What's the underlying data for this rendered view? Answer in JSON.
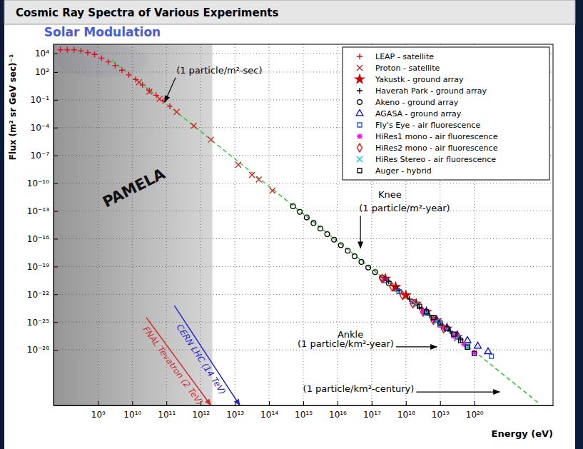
{
  "chart_data": {
    "type": "scatter",
    "title": "Cosmic Ray Spectra of Various Experiments",
    "x_label": "Energy (eV)",
    "y_label": "Flux (m² sr GeV sec)⁻¹",
    "log": true,
    "grid": true,
    "legend": "upper right",
    "xlim": [
      50000000.0,
      2e+22
    ],
    "ylim": [
      1e-34,
      100000.0
    ],
    "xticks": [
      {
        "value": 1000000000.0,
        "label": "10⁹"
      },
      {
        "value": 10000000000.0,
        "label": "10¹⁰"
      },
      {
        "value": 100000000000.0,
        "label": "10¹¹"
      },
      {
        "value": 1000000000000.0,
        "label": "10¹²"
      },
      {
        "value": 10000000000000.0,
        "label": "10¹³"
      },
      {
        "value": 100000000000000.0,
        "label": "10¹⁴"
      },
      {
        "value": 1000000000000000.0,
        "label": "10¹⁵"
      },
      {
        "value": 1e+16,
        "label": "10¹⁶"
      },
      {
        "value": 1e+17,
        "label": "10¹⁷"
      },
      {
        "value": 1e+18,
        "label": "10¹⁸"
      },
      {
        "value": 1e+19,
        "label": "10¹⁹"
      },
      {
        "value": 1e+20,
        "label": "10²⁰"
      }
    ],
    "yticks": [
      {
        "value": 10000.0,
        "label": "10⁴"
      },
      {
        "value": 100,
        "label": "10²"
      },
      {
        "value": 0.1,
        "label": "10⁻¹"
      },
      {
        "value": 0.0001,
        "label": "10⁻⁴"
      },
      {
        "value": 1e-07,
        "label": "10⁻⁷"
      },
      {
        "value": 1e-10,
        "label": "10⁻¹⁰"
      },
      {
        "value": 1e-13,
        "label": "10⁻¹³"
      },
      {
        "value": 1e-16,
        "label": "10⁻¹⁶"
      },
      {
        "value": 1e-19,
        "label": "10⁻¹⁹"
      },
      {
        "value": 1e-22,
        "label": "10⁻²²"
      },
      {
        "value": 1e-25,
        "label": "10⁻²⁵"
      },
      {
        "value": 1e-28,
        "label": "10⁻²⁸"
      }
    ],
    "series": [
      {
        "name": "LEAP - satellite",
        "color": "#e8001c",
        "marker": "plus",
        "x": [
          79400000.0,
          126000000.0,
          200000000.0,
          316000000.0,
          501000000.0,
          794000000.0,
          1260000000.0,
          2000000000.0,
          3160000000.0,
          5010000000.0,
          7940000000.0,
          12600000000.0,
          20000000000.0,
          31600000000.0,
          50100000000.0,
          79400000000.0,
          126000000000.0
        ],
        "values": [
          25100.0,
          25100.0,
          25100.0,
          20000.0,
          12600.0,
          7940.0,
          3160.0,
          1260.0,
          501,
          158,
          50.1,
          15.8,
          3.98,
          1,
          0.316,
          0.0794,
          0.02
        ]
      },
      {
        "name": "Proton - satellite",
        "color": "#d42020",
        "marker": "cross",
        "x": [
          15800000000.0,
          31600000000.0,
          63100000000.0,
          200000000000.0,
          631000000000.0,
          2000000000000.0,
          12600000000000.0,
          31600000000000.0,
          50100000000000.0,
          126000000000000.0
        ],
        "values": [
          7.94,
          0.794,
          0.126,
          0.00501,
          0.000158,
          5.01e-06,
          1e-08,
          7.94e-10,
          2.51e-10,
          1.58e-11
        ]
      },
      {
        "name": "Yakustk - ground array",
        "color": "#cc0000",
        "marker": "star",
        "x": [
          2.51e+17,
          5.01e+17,
          1e+18,
          2e+18,
          3.98e+18,
          7.94e+18,
          1.58e+19,
          3.16e+19
        ],
        "values": [
          5.01e-21,
          6.31e-22,
          7.94e-23,
          1e-23,
          1.26e-24,
          1.58e-25,
          2e-26,
          2.51e-27
        ]
      },
      {
        "name": "Haverah Park - ground array",
        "color": "#000000",
        "marker": "plus",
        "x": [
          3.16e+17,
          6.31e+17,
          1.26e+18,
          2.51e+18,
          5.01e+18,
          1e+19,
          2e+19,
          3.98e+19
        ],
        "values": [
          2.51e-21,
          2.51e-22,
          3.16e-23,
          3.98e-24,
          5.01e-25,
          6.31e-26,
          1e-26,
          1.26e-27
        ]
      },
      {
        "name": "Akeno - ground array",
        "color": "#000000",
        "marker": "circle-open",
        "x": [
          501000000000000.0,
          794000000000000.0,
          1260000000000000.0,
          2000000000000000.0,
          3160000000000000.0,
          5010000000000000.0,
          7940000000000000.0,
          1.26e+16,
          2e+16,
          3.16e+16,
          5.01e+16,
          7.94e+16,
          1.26e+17,
          2e+17,
          3.16e+17,
          5.01e+17
        ],
        "values": [
          3.16e-13,
          7.94e-14,
          2e-14,
          5.01e-15,
          1.26e-15,
          3.16e-16,
          7.94e-17,
          2e-17,
          5.01e-18,
          1.26e-18,
          3.16e-19,
          7.94e-20,
          2.51e-20,
          6.31e-21,
          1.58e-21,
          3.98e-22
        ]
      },
      {
        "name": "AGASA - ground array",
        "color": "#0000ff",
        "marker": "triangle-open",
        "x": [
          3.98e+18,
          7.94e+18,
          1.58e+19,
          3.16e+19,
          6.31e+19,
          1.26e+20,
          2.51e+20
        ],
        "values": [
          1.26e-24,
          1.58e-25,
          2.51e-26,
          3.98e-27,
          1e-27,
          2.51e-28,
          6.31e-29
        ]
      },
      {
        "name": "Fly's Eye - air fluorescence",
        "color": "#1a4cff",
        "marker": "square-open",
        "x": [
          2.51e+17,
          6.31e+17,
          1.58e+18,
          3.98e+18,
          1e+19,
          2.51e+19,
          6.31e+19,
          3.16e+20
        ],
        "values": [
          3.16e-21,
          2e-22,
          1.58e-23,
          1e-24,
          5.01e-26,
          3.98e-27,
          3.16e-28,
          2e-29
        ]
      },
      {
        "name": "HiRes1 mono - air fluorescence",
        "color": "#ff00ff",
        "marker": "asterisk",
        "x": [
          3.16e+18,
          6.31e+18,
          1.26e+19,
          2.51e+19,
          5.01e+19,
          1e+20
        ],
        "values": [
          1.58e-24,
          2e-25,
          2.51e-26,
          3.16e-27,
          3.98e-28,
          5.01e-29
        ]
      },
      {
        "name": "HiRes2 mono - air fluorescence",
        "color": "#ff0000",
        "marker": "diamond-open",
        "x": [
          2e+17,
          3.98e+17,
          7.94e+17,
          1.58e+18,
          3.16e+18,
          6.31e+18,
          1.26e+19
        ],
        "values": [
          5.01e-21,
          6.31e-22,
          7.94e-23,
          1e-23,
          1.26e-24,
          1.58e-25,
          2e-26
        ]
      },
      {
        "name": "HiRes Stereo - air fluorescence",
        "color": "#00c8d8",
        "marker": "cross",
        "x": [
          2e+18,
          3.98e+18,
          7.94e+18,
          1.58e+19,
          3.16e+19,
          6.31e+19
        ],
        "values": [
          7.94e-24,
          1e-24,
          1.26e-25,
          1.58e-26,
          2e-27,
          2.51e-28
        ]
      },
      {
        "name": "Auger - hybrid",
        "color": "#000000",
        "marker": "square-open",
        "x": [
          2.51e+18,
          3.98e+18,
          6.31e+18,
          1e+19,
          1.58e+19,
          2.51e+19,
          3.98e+19,
          6.31e+19,
          1e+20
        ],
        "values": [
          5.01e-24,
          1.26e-24,
          3.16e-25,
          7.94e-26,
          2e-26,
          5.01e-27,
          1e-27,
          2e-28,
          3.98e-29
        ]
      },
      {
        "type": "line",
        "color": "#22cc22",
        "line_style": "dashed",
        "x": [
          2510000000.0,
          7.94e+21
        ],
        "values": [
          2040.0,
          1.6e-34
        ]
      }
    ],
    "annotations": [
      {
        "text": "Solar Modulation",
        "color": "#4a5ae0",
        "x_range": [
          60000000.0,
          30000000000.0
        ],
        "y_range": [
          25,
          100000.0
        ]
      },
      {
        "text": "PAMELA",
        "x_range": [
          50000000.0,
          2200000000000.0
        ],
        "x": 13000000000.0,
        "y": 1e-11
      },
      {
        "text": "(1 particle/m²-sec)",
        "x": 195000000000.0,
        "y": 69,
        "arrow_x": 89000000000.0,
        "arrow_y": 0.058
      },
      {
        "text": "Knee",
        "x": 1.55e+17,
        "y": 2.7e-12
      },
      {
        "text": "(1 particle/m²-year)",
        "x": 4.3e+16,
        "y": 9e-14,
        "arrow_x": 4.7e+16,
        "arrow_y": 1e-17
      },
      {
        "text": "Ankle",
        "x": 1e+16,
        "y": 2.1e-27
      },
      {
        "text": "(1 particle/km²-year)",
        "x": 680000000000000.0,
        "y": 2.1e-28,
        "arrow_x": 8e+18,
        "arrow_y": 2.1e-28
      },
      {
        "text": "(1 particle/km²-century)",
        "x": 980000000000000.0,
        "y": 2.9e-33,
        "arrow_x": 5.5e+20,
        "arrow_y": 2.9e-33
      },
      {
        "text": "FNAL Tevatron (2 TeV)",
        "color": "#d03030",
        "x": 26000000000.0,
        "y": 3e-25,
        "arrow_x": 2000000000000.0,
        "arrow_y": 1e-34
      },
      {
        "text": "CERN LHC (14 TeV)",
        "color": "#2828d0",
        "x": 170000000000.0,
        "y": 6e-24,
        "arrow_x": 14000000000000.0,
        "arrow_y": 1e-34
      }
    ]
  }
}
